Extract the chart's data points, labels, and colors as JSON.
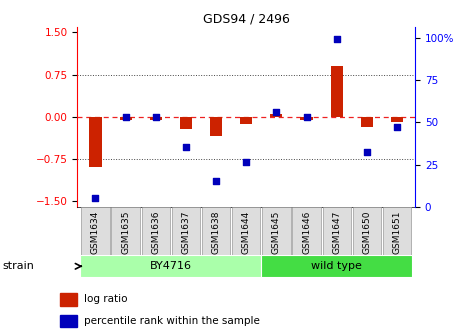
{
  "title": "GDS94 / 2496",
  "samples": [
    "GSM1634",
    "GSM1635",
    "GSM1636",
    "GSM1637",
    "GSM1638",
    "GSM1644",
    "GSM1645",
    "GSM1646",
    "GSM1647",
    "GSM1650",
    "GSM1651"
  ],
  "log_ratio": [
    -0.9,
    -0.05,
    -0.05,
    -0.22,
    -0.35,
    -0.13,
    0.05,
    -0.05,
    0.9,
    -0.18,
    -0.1
  ],
  "percentile": [
    2,
    50,
    50,
    32,
    12,
    23,
    53,
    50,
    96,
    29,
    44
  ],
  "groups": [
    {
      "label": "BY4716",
      "start": 0,
      "end": 5,
      "color": "#AAFFAA"
    },
    {
      "label": "wild type",
      "start": 6,
      "end": 10,
      "color": "#44DD44"
    }
  ],
  "ylim_left": [
    -1.6,
    1.6
  ],
  "ylim_right": [
    0,
    106.67
  ],
  "yticks_left": [
    -1.5,
    -0.75,
    0,
    0.75,
    1.5
  ],
  "yticks_right": [
    0,
    25,
    50,
    75,
    100
  ],
  "bar_color": "#CC2200",
  "dot_color": "#0000BB",
  "zero_line_color": "#EE2222",
  "grid_color": "#444444",
  "bg_color": "#FFFFFF",
  "legend_bar_label": "log ratio",
  "legend_dot_label": "percentile rank within the sample",
  "strain_label": "strain"
}
